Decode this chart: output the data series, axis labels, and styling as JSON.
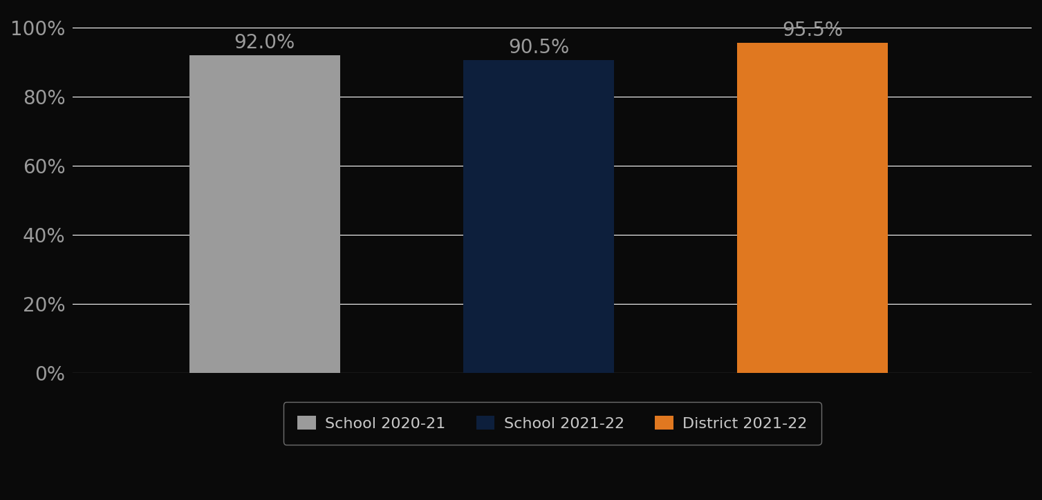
{
  "categories": [
    "School 2020-21",
    "School 2021-22",
    "District 2021-22"
  ],
  "values": [
    0.92,
    0.905,
    0.955
  ],
  "bar_colors": [
    "#9b9b9b",
    "#0d1f3c",
    "#e07820"
  ],
  "value_labels": [
    "92.0%",
    "90.5%",
    "95.5%"
  ],
  "ylim": [
    0,
    1.05
  ],
  "yticks": [
    0,
    0.2,
    0.4,
    0.6,
    0.8,
    1.0
  ],
  "yticklabels": [
    "0%",
    "20%",
    "40%",
    "60%",
    "80%",
    "100%"
  ],
  "background_color": "#0a0a0a",
  "grid_color": "#ffffff",
  "tick_color": "#9b9b9b",
  "bar_label_color": "#9b9b9b",
  "legend_text_color": "#c8c8c8",
  "legend_bg_color": "#0a0a0a",
  "legend_edge_color": "#888888",
  "value_fontsize": 20,
  "tick_fontsize": 20,
  "legend_fontsize": 16,
  "bar_width": 0.55,
  "bar_positions": [
    1,
    2,
    3
  ],
  "xlim": [
    0.3,
    3.8
  ]
}
